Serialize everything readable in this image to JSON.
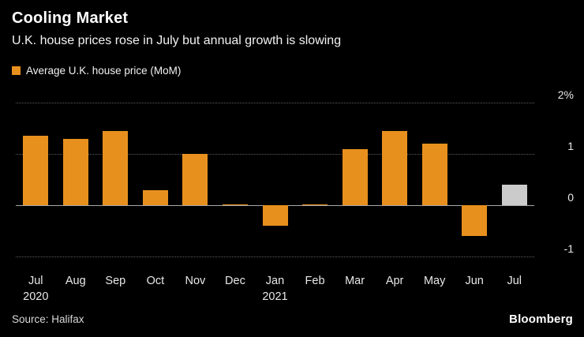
{
  "header": {
    "title": "Cooling Market",
    "subtitle": "U.K. house prices rose in July but annual growth is slowing"
  },
  "legend": {
    "label": "Average U.K. house price (MoM)",
    "swatch_color": "#E8901E"
  },
  "footer": {
    "source": "Source: Halifax",
    "brand": "Bloomberg"
  },
  "chart_data": {
    "type": "bar",
    "title": "Cooling Market",
    "subtitle": "U.K. house prices rose in July but annual growth is slowing",
    "series_name": "Average U.K. house price (MoM)",
    "categories": [
      "Jul",
      "Aug",
      "Sep",
      "Oct",
      "Nov",
      "Dec",
      "Jan",
      "Feb",
      "Mar",
      "Apr",
      "May",
      "Jun",
      "Jul"
    ],
    "year_labels": [
      {
        "index": 0,
        "label": "2020"
      },
      {
        "index": 6,
        "label": "2021"
      }
    ],
    "values": [
      1.35,
      1.3,
      1.45,
      0.3,
      1.0,
      0.02,
      -0.4,
      0.02,
      1.1,
      1.45,
      1.2,
      -0.6,
      0.4
    ],
    "unit": "%",
    "bar_color": "#E8901E",
    "highlight_index": 12,
    "highlight_color": "#CBCBCB",
    "ylim": [
      -1.26,
      2
    ],
    "yticks": [
      {
        "value": 2,
        "label": "2%"
      },
      {
        "value": 1,
        "label": "1"
      },
      {
        "value": 0,
        "label": "0"
      },
      {
        "value": -1,
        "label": "-1"
      }
    ],
    "grid": "horizontal-dotted",
    "legend_position": "top-left",
    "axis_side": "right"
  }
}
